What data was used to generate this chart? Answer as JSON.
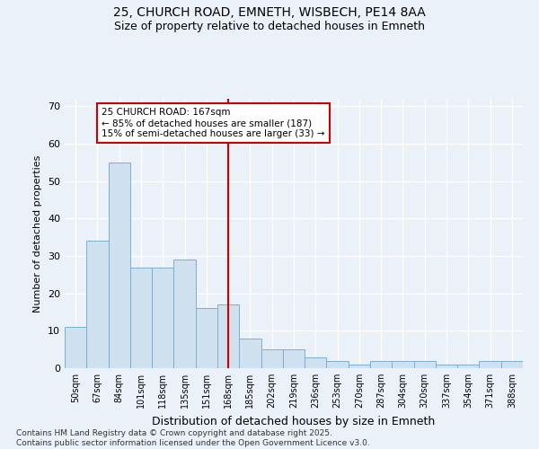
{
  "title1": "25, CHURCH ROAD, EMNETH, WISBECH, PE14 8AA",
  "title2": "Size of property relative to detached houses in Emneth",
  "xlabel": "Distribution of detached houses by size in Emneth",
  "ylabel": "Number of detached properties",
  "bar_labels": [
    "50sqm",
    "67sqm",
    "84sqm",
    "101sqm",
    "118sqm",
    "135sqm",
    "151sqm",
    "168sqm",
    "185sqm",
    "202sqm",
    "219sqm",
    "236sqm",
    "253sqm",
    "270sqm",
    "287sqm",
    "304sqm",
    "320sqm",
    "337sqm",
    "354sqm",
    "371sqm",
    "388sqm"
  ],
  "bar_values": [
    11,
    34,
    55,
    27,
    27,
    29,
    16,
    17,
    8,
    5,
    5,
    3,
    2,
    1,
    2,
    2,
    2,
    1,
    1,
    2,
    2
  ],
  "bar_color": "#cfe0ef",
  "bar_edge_color": "#7ab0d4",
  "vline_index": 7,
  "vline_color": "#cc0000",
  "annotation_title": "25 CHURCH ROAD: 167sqm",
  "annotation_line1": "← 85% of detached houses are smaller (187)",
  "annotation_line2": "15% of semi-detached houses are larger (33) →",
  "annotation_box_color": "#cc0000",
  "annotation_bg": "#ffffff",
  "ylim": [
    0,
    72
  ],
  "yticks": [
    0,
    10,
    20,
    30,
    40,
    50,
    60,
    70
  ],
  "bg_color": "#eaf1f8",
  "grid_color": "#ffffff",
  "footer1": "Contains HM Land Registry data © Crown copyright and database right 2025.",
  "footer2": "Contains public sector information licensed under the Open Government Licence v3.0."
}
